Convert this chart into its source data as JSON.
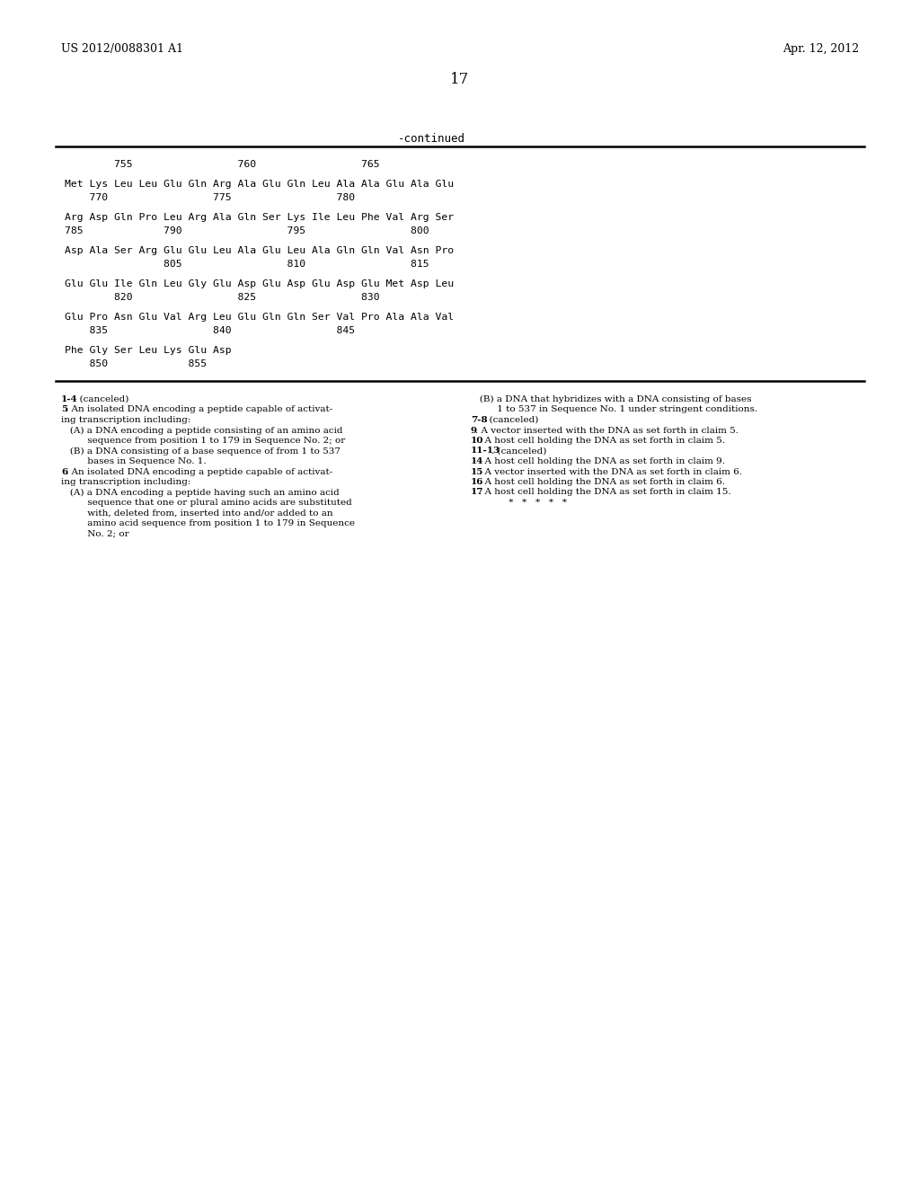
{
  "background_color": "#ffffff",
  "header_left": "US 2012/0088301 A1",
  "header_right": "Apr. 12, 2012",
  "page_number": "17",
  "continued_label": "-continued",
  "seq_position_line": "        755                 760                 765",
  "seq_rows": [
    {
      "amino": "Met Lys Leu Leu Glu Gln Arg Ala Glu Gln Leu Ala Ala Glu Ala Glu",
      "numbers": "    770                 775                 780"
    },
    {
      "amino": "Arg Asp Gln Pro Leu Arg Ala Gln Ser Lys Ile Leu Phe Val Arg Ser",
      "numbers": "785             790                 795                 800"
    },
    {
      "amino": "Asp Ala Ser Arg Glu Glu Leu Ala Glu Leu Ala Gln Gln Val Asn Pro",
      "numbers": "                805                 810                 815"
    },
    {
      "amino": "Glu Glu Ile Gln Leu Gly Glu Asp Glu Asp Glu Asp Glu Met Asp Leu",
      "numbers": "        820                 825                 830"
    },
    {
      "amino": "Glu Pro Asn Glu Val Arg Leu Glu Gln Gln Ser Val Pro Ala Ala Val",
      "numbers": "    835                 840                 845"
    },
    {
      "amino": "Phe Gly Ser Leu Lys Glu Asp",
      "numbers": "    850             855"
    }
  ],
  "claims_left_lines": [
    {
      "bold": "1-4",
      "normal": ". (canceled)",
      "extra_indent": false
    },
    {
      "bold": "5",
      "normal": ". An isolated DNA encoding a peptide capable of activat-",
      "extra_indent": false
    },
    {
      "bold": "",
      "normal": "ing transcription including:",
      "extra_indent": false
    },
    {
      "bold": "",
      "normal": "   (A) a DNA encoding a peptide consisting of an amino acid",
      "extra_indent": false
    },
    {
      "bold": "",
      "normal": "         sequence from position 1 to 179 in Sequence No. 2; or",
      "extra_indent": false
    },
    {
      "bold": "",
      "normal": "   (B) a DNA consisting of a base sequence of from 1 to 537",
      "extra_indent": false
    },
    {
      "bold": "",
      "normal": "         bases in Sequence No. 1.",
      "extra_indent": false
    },
    {
      "bold": "6",
      "normal": ". An isolated DNA encoding a peptide capable of activat-",
      "extra_indent": false
    },
    {
      "bold": "",
      "normal": "ing transcription including:",
      "extra_indent": false
    },
    {
      "bold": "",
      "normal": "   (A) a DNA encoding a peptide having such an amino acid",
      "extra_indent": false
    },
    {
      "bold": "",
      "normal": "         sequence that one or plural amino acids are substituted",
      "extra_indent": false
    },
    {
      "bold": "",
      "normal": "         with, deleted from, inserted into and/or added to an",
      "extra_indent": false
    },
    {
      "bold": "",
      "normal": "         amino acid sequence from position 1 to 179 in Sequence",
      "extra_indent": false
    },
    {
      "bold": "",
      "normal": "         No. 2; or",
      "extra_indent": false
    }
  ],
  "claims_right_lines": [
    {
      "bold": "",
      "normal": "   (B) a DNA that hybridizes with a DNA consisting of bases",
      "extra_indent": false
    },
    {
      "bold": "",
      "normal": "         1 to 537 in Sequence No. 1 under stringent conditions.",
      "extra_indent": false
    },
    {
      "bold": "7-8",
      "normal": ". (canceled)",
      "extra_indent": false
    },
    {
      "bold": "9",
      "normal": ". A vector inserted with the DNA as set forth in claim 5.",
      "extra_indent": false
    },
    {
      "bold": "10",
      "normal": ". A host cell holding the DNA as set forth in claim 5.",
      "extra_indent": false
    },
    {
      "bold": "11-13",
      "normal": ". (canceled)",
      "extra_indent": false
    },
    {
      "bold": "14",
      "normal": ". A host cell holding the DNA as set forth in claim 9.",
      "extra_indent": false
    },
    {
      "bold": "15",
      "normal": ". A vector inserted with the DNA as set forth in claim 6.",
      "extra_indent": false
    },
    {
      "bold": "16",
      "normal": ". A host cell holding the DNA as set forth in claim 6.",
      "extra_indent": false
    },
    {
      "bold": "17",
      "normal": ". A host cell holding the DNA as set forth in claim 15.",
      "extra_indent": false
    },
    {
      "bold": "",
      "normal": "             *   *   *   *   *",
      "extra_indent": false
    }
  ]
}
